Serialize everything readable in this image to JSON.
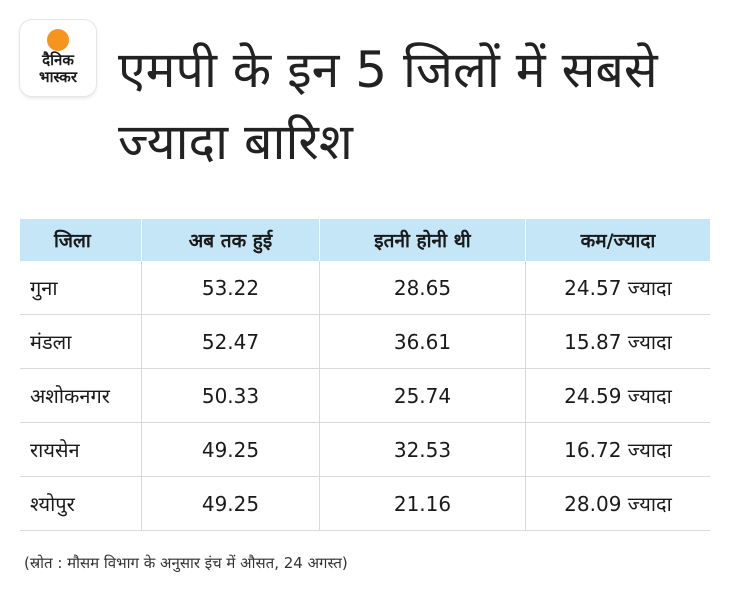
{
  "logo": {
    "line1": "दैनिक",
    "line2": "भास्कर",
    "accent_color": "#f7941d",
    "text_color": "#1a1a1a"
  },
  "title": "एमपी के इन 5 जिलों में सबसे ज्यादा बारिश",
  "chart_data": {
    "type": "table",
    "columns": [
      "जिला",
      "अब तक हुई",
      "इतनी होनी थी",
      "कम/ज्यादा"
    ],
    "rows": [
      [
        "गुना",
        "53.22",
        "28.65",
        "24.57 ज्यादा"
      ],
      [
        "मंडला",
        "52.47",
        "36.61",
        "15.87 ज्यादा"
      ],
      [
        "अशोकनगर",
        "50.33",
        "25.74",
        "24.59 ज्यादा"
      ],
      [
        "रायसेन",
        "49.25",
        "32.53",
        "16.72 ज्यादा"
      ],
      [
        "श्योपुर",
        "49.25",
        "21.16",
        "28.09 ज्यादा"
      ]
    ],
    "header_color": "#c4e6f6"
  },
  "source": "(स्रोत : मौसम विभाग के अनुसार इंच में औसत, 24 अगस्त)"
}
